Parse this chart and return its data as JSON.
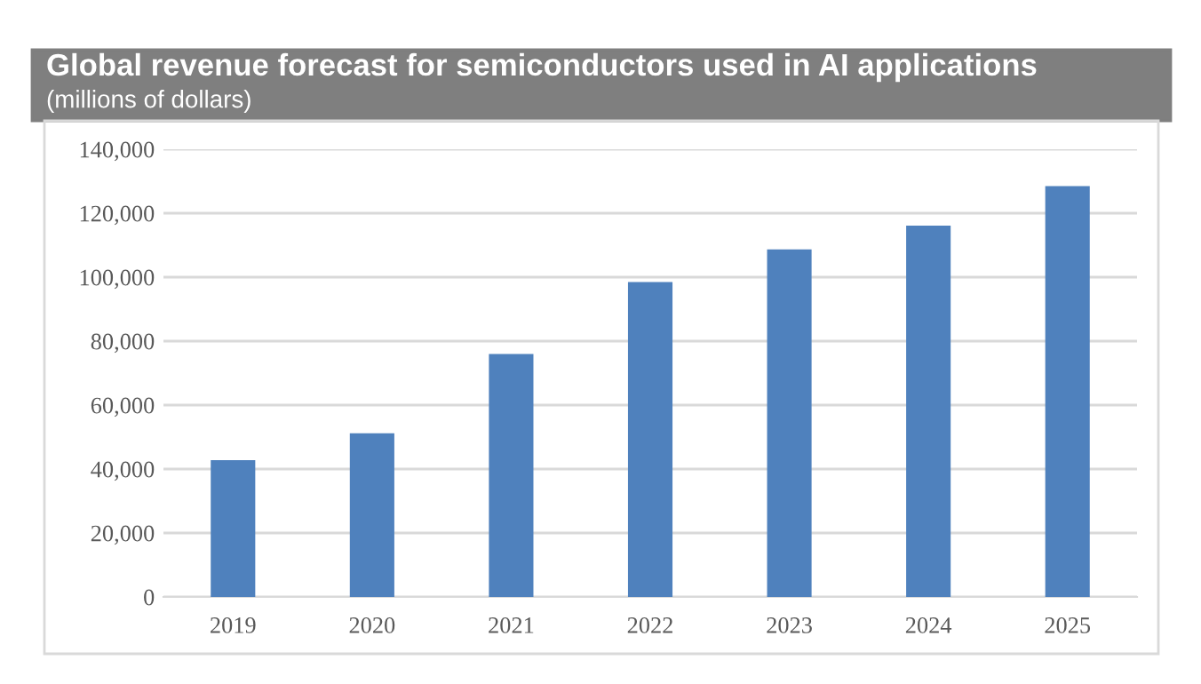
{
  "chart_data": {
    "type": "bar",
    "title": "Global revenue forecast for semiconductors used in AI applications",
    "subtitle": "(millions of dollars)",
    "categories": [
      "2019",
      "2020",
      "2021",
      "2022",
      "2023",
      "2024",
      "2025"
    ],
    "values": [
      42800,
      51200,
      76000,
      98500,
      108700,
      116100,
      128500
    ],
    "color": "#4f81bd",
    "ylim": [
      0,
      140000
    ],
    "yticks": [
      {
        "value": 0,
        "label": "0"
      },
      {
        "value": 20000,
        "label": "20,000"
      },
      {
        "value": 40000,
        "label": "40,000"
      },
      {
        "value": 60000,
        "label": "60,000"
      },
      {
        "value": 80000,
        "label": "80,000"
      },
      {
        "value": 100000,
        "label": "100,000"
      },
      {
        "value": 120000,
        "label": "120,000"
      },
      {
        "value": 140000,
        "label": "140,000"
      }
    ],
    "grid": "y"
  }
}
